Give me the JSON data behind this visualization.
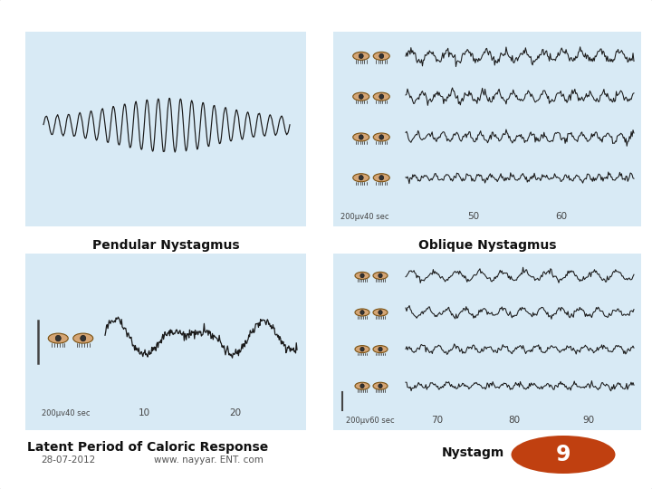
{
  "slide_bg": "#ffffff",
  "panel_color": "#d8eaf5",
  "label_top_left": "Pendular Nystagmus",
  "label_top_right": "Oblique Nystagmus",
  "subtitle_left": "Latent Period of Caloric Response",
  "date_text": "28-07-2012",
  "website": "www. nayyar. ENT. com",
  "nystagmus_label": "Nystagm",
  "page_number": "9",
  "wave_color": "#1a1a1a",
  "eye_color": "#d4a575",
  "eye_edge": "#7a5010",
  "pupil_color": "#333333",
  "lash_color": "#444444",
  "text_color": "#111111",
  "scale_color": "#444444",
  "oval_color": "#c04010"
}
